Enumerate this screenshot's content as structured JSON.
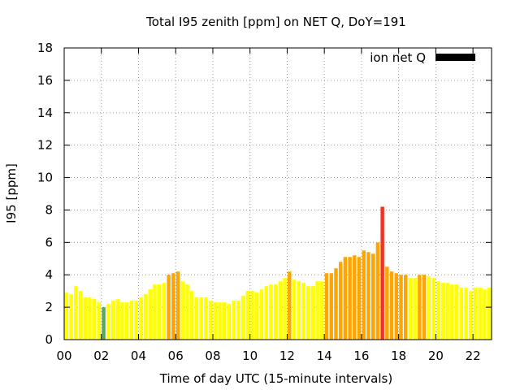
{
  "chart_data": {
    "type": "bar",
    "title": "Total I95 zenith [ppm] on NET Q, DoY=191",
    "xlabel": "Time of day UTC (15-minute intervals)",
    "ylabel": "I95 [ppm]",
    "ylim": [
      0,
      18
    ],
    "xlim": [
      0,
      23
    ],
    "grid": true,
    "legend": {
      "position": "top-right",
      "label": "ion net Q",
      "color": "#000000"
    },
    "x_ticks": [
      "00",
      "02",
      "04",
      "06",
      "08",
      "10",
      "12",
      "14",
      "16",
      "18",
      "20",
      "22"
    ],
    "y_ticks": [
      "0",
      "2",
      "4",
      "6",
      "8",
      "10",
      "12",
      "14",
      "16",
      "18"
    ],
    "colors": {
      "low": "#ffff00",
      "mid": "#ffa500",
      "high": "#ee3322",
      "bad": "#55aa55"
    },
    "interval_hours": 0.25,
    "values": [
      2.9,
      2.8,
      3.3,
      3.0,
      2.6,
      2.6,
      2.5,
      2.3,
      2.0,
      2.2,
      2.4,
      2.5,
      2.3,
      2.3,
      2.4,
      2.4,
      2.6,
      2.8,
      3.1,
      3.4,
      3.4,
      3.5,
      4.0,
      4.1,
      4.2,
      3.6,
      3.4,
      3.0,
      2.6,
      2.6,
      2.6,
      2.4,
      2.3,
      2.3,
      2.3,
      2.2,
      2.4,
      2.4,
      2.7,
      3.0,
      3.0,
      2.9,
      3.1,
      3.3,
      3.4,
      3.4,
      3.6,
      3.8,
      4.2,
      3.7,
      3.6,
      3.5,
      3.3,
      3.3,
      3.6,
      3.6,
      4.1,
      4.1,
      4.4,
      4.8,
      5.1,
      5.1,
      5.2,
      5.1,
      5.5,
      5.4,
      5.3,
      6.0,
      8.2,
      4.5,
      4.2,
      4.1,
      4.0,
      4.0,
      3.8,
      3.8,
      4.0,
      4.0,
      3.9,
      3.8,
      3.6,
      3.5,
      3.5,
      3.4,
      3.4,
      3.2,
      3.2,
      3.0,
      3.2,
      3.2,
      3.1,
      3.2
    ],
    "categories_by_index": {
      "8": "bad"
    }
  }
}
